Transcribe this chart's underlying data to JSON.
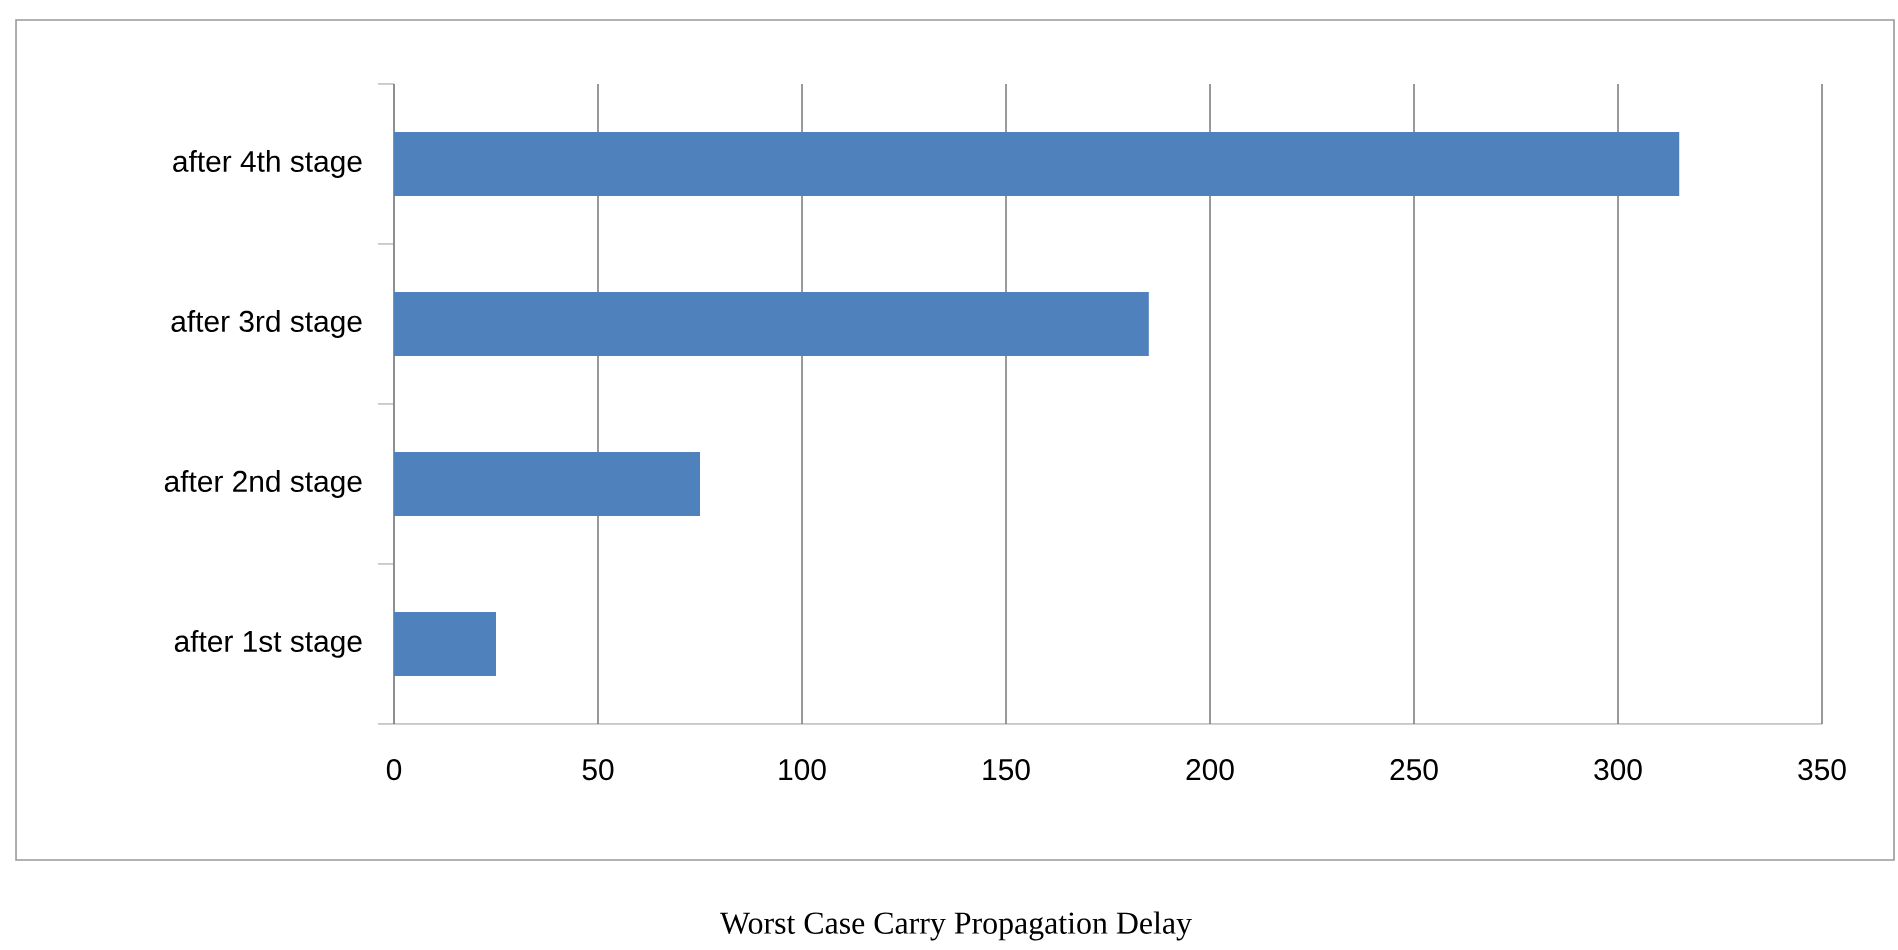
{
  "chart_data": {
    "type": "bar",
    "orientation": "horizontal",
    "categories": [
      "after 4th stage",
      "after 3rd stage",
      "after 2nd stage",
      "after 1st stage"
    ],
    "values": [
      315,
      185,
      75,
      25
    ],
    "color": "#4f81bd",
    "xlim": [
      0,
      350
    ],
    "xticks": [
      0,
      50,
      100,
      150,
      200,
      250,
      300,
      350
    ],
    "grid": "x",
    "annotations": [
      "Worst Case Carry Propagation Delay"
    ]
  }
}
